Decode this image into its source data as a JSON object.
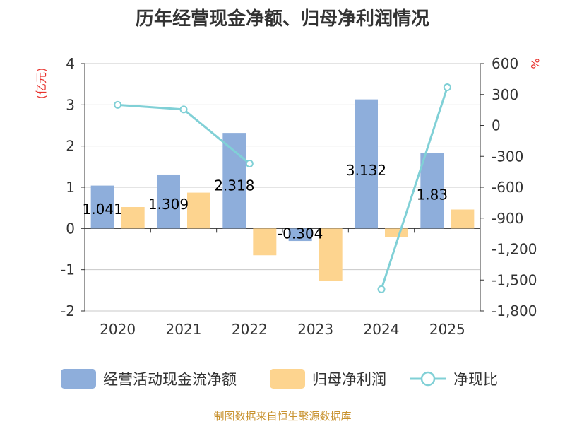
{
  "title": "历年经营现金净额、归母净利润情况",
  "source": "制图数据来自恒生聚源数据库",
  "chart_data": {
    "type": "bar+line",
    "categories": [
      "2020",
      "2021",
      "2022",
      "2023",
      "2024",
      "2025"
    ],
    "series": [
      {
        "name": "经营活动现金流净额",
        "type": "bar",
        "axis": "left",
        "values": [
          1.041,
          1.309,
          2.318,
          -0.304,
          3.132,
          1.83
        ],
        "color": "#8eaedb",
        "labels": [
          "1.041",
          "1.309",
          "2.318",
          "-0.304",
          "3.132",
          "1.83"
        ]
      },
      {
        "name": "归母净利润",
        "type": "bar",
        "axis": "left",
        "values": [
          0.52,
          0.87,
          -0.65,
          -1.27,
          -0.2,
          0.46
        ],
        "color": "#fdd48f"
      },
      {
        "name": "净现比",
        "type": "line",
        "axis": "right",
        "values": [
          200,
          155,
          -370,
          null,
          -1590,
          370
        ],
        "color": "#80d0d6"
      }
    ],
    "left_axis": {
      "unit": "(亿元)",
      "min": -2,
      "max": 4,
      "ticks": [
        "4",
        "3",
        "2",
        "1",
        "0",
        "-1",
        "-2"
      ],
      "tick_values": [
        4,
        3,
        2,
        1,
        0,
        -1,
        -2
      ]
    },
    "right_axis": {
      "unit": "%",
      "min": -1800,
      "max": 600,
      "ticks": [
        "600",
        "300",
        "0",
        "-300",
        "-600",
        "-900",
        "-1,200",
        "-1,500",
        "-1,800"
      ],
      "tick_values": [
        600,
        300,
        0,
        -300,
        -600,
        -900,
        -1200,
        -1500,
        -1800
      ]
    },
    "grid": true,
    "legend": "bottom"
  }
}
